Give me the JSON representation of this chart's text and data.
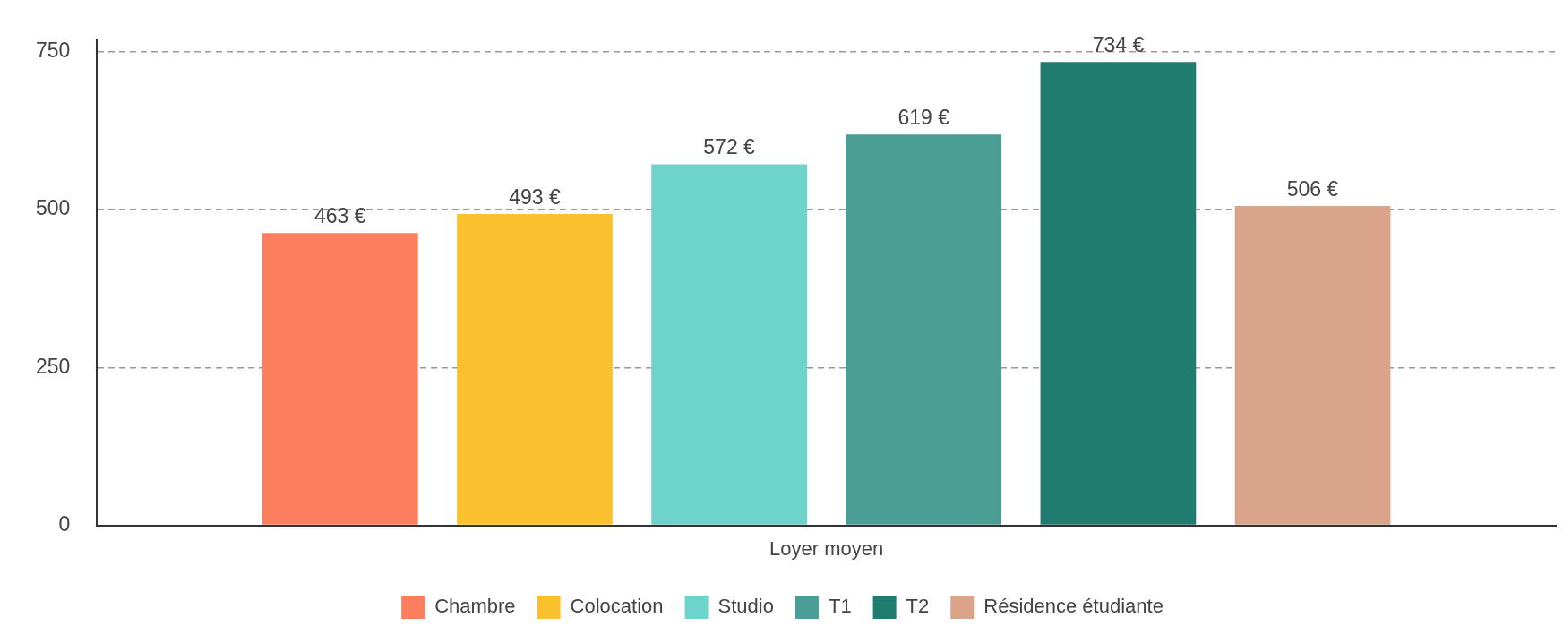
{
  "chart_data": {
    "type": "bar",
    "categories": [
      "Loyer moyen"
    ],
    "series": [
      {
        "name": "Chambre",
        "color": "#fb7f5f",
        "values": [
          463
        ],
        "value_labels": [
          "463 €"
        ]
      },
      {
        "name": "Colocation",
        "color": "#fbc02d",
        "values": [
          493
        ],
        "value_labels": [
          "493 €"
        ]
      },
      {
        "name": "Studio",
        "color": "#6dd3cb",
        "values": [
          572
        ],
        "value_labels": [
          "572 €"
        ]
      },
      {
        "name": "T1",
        "color": "#4a9e96",
        "values": [
          619
        ],
        "value_labels": [
          "619 €"
        ]
      },
      {
        "name": "T2",
        "color": "#207b70",
        "values": [
          734
        ],
        "value_labels": [
          "734 €"
        ]
      },
      {
        "name": "Résidence étudiante",
        "color": "#d9a489",
        "values": [
          506
        ],
        "value_labels": [
          "506 €"
        ]
      }
    ],
    "ylim": [
      0,
      770
    ],
    "yticks": [
      0,
      250,
      500,
      750
    ],
    "grid": "y",
    "legend": "bottom"
  }
}
